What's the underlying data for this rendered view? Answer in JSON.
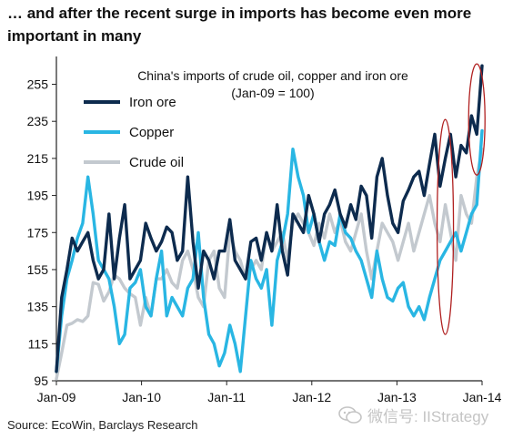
{
  "headline": "… and after the recent surge in imports has become even more important in many",
  "source": "Source: EcoWin, Barclays Research",
  "watermark": "微信号: IIStrategy",
  "chart_data": {
    "type": "line",
    "title": "China's imports of crude oil, copper and iron ore",
    "subtitle": "(Jan-09 = 100)",
    "x_ticks": [
      "Jan-09",
      "Jan-10",
      "Jan-11",
      "Jan-12",
      "Jan-13",
      "Jan-14"
    ],
    "x_start": "2009-01",
    "x_end": "2014-01",
    "y_ticks": [
      95,
      115,
      135,
      155,
      175,
      195,
      215,
      235,
      255
    ],
    "ylim": [
      95,
      270
    ],
    "legend_position": "top-left",
    "grid": false,
    "highlight_color": "#b02020",
    "series": [
      {
        "name": "Iron ore",
        "color": "#0d2b4e",
        "values": [
          100,
          140,
          155,
          172,
          165,
          170,
          175,
          160,
          150,
          155,
          185,
          150,
          172,
          190,
          150,
          155,
          160,
          180,
          172,
          165,
          170,
          178,
          175,
          160,
          165,
          205,
          170,
          145,
          165,
          160,
          150,
          165,
          165,
          182,
          160,
          155,
          150,
          170,
          172,
          160,
          175,
          165,
          190,
          165,
          152,
          185,
          180,
          175,
          195,
          185,
          170,
          185,
          190,
          198,
          185,
          178,
          190,
          182,
          200,
          195,
          172,
          205,
          215,
          195,
          180,
          175,
          192,
          198,
          205,
          208,
          195,
          212,
          228,
          200,
          215,
          228,
          205,
          222,
          218,
          238,
          228,
          265
        ]
      },
      {
        "name": "Copper",
        "color": "#29b6e3",
        "values": [
          100,
          130,
          150,
          160,
          172,
          180,
          205,
          185,
          160,
          155,
          150,
          135,
          115,
          120,
          145,
          148,
          155,
          135,
          130,
          150,
          165,
          130,
          140,
          135,
          130,
          145,
          150,
          175,
          140,
          120,
          115,
          103,
          110,
          125,
          115,
          100,
          130,
          160,
          150,
          145,
          155,
          125,
          160,
          170,
          185,
          220,
          205,
          195,
          175,
          185,
          170,
          160,
          170,
          168,
          185,
          175,
          172,
          165,
          160,
          150,
          140,
          165,
          150,
          140,
          138,
          145,
          148,
          135,
          130,
          135,
          128,
          140,
          150,
          160,
          165,
          170,
          175,
          165,
          175,
          185,
          190,
          230
        ]
      },
      {
        "name": "Crude oil",
        "color": "#c3c9cf",
        "values": [
          96,
          110,
          125,
          126,
          128,
          127,
          130,
          148,
          147,
          138,
          143,
          152,
          150,
          145,
          142,
          140,
          125,
          140,
          130,
          150,
          150,
          155,
          148,
          145,
          160,
          165,
          155,
          140,
          135,
          160,
          165,
          145,
          140,
          175,
          165,
          160,
          150,
          155,
          160,
          155,
          175,
          165,
          170,
          175,
          160,
          180,
          185,
          180,
          175,
          168,
          180,
          172,
          185,
          175,
          182,
          170,
          165,
          175,
          185,
          165,
          150,
          165,
          180,
          175,
          170,
          160,
          170,
          180,
          165,
          175,
          185,
          195,
          180,
          170,
          190,
          175,
          160,
          195,
          185,
          180,
          205,
          220
        ]
      }
    ],
    "highlights": [
      {
        "label": "Jan-13 spike",
        "x_index": 74,
        "y_center": 178,
        "ry_units": 58
      },
      {
        "label": "Jan-14 spike",
        "x_index": 80,
        "y_center": 236,
        "ry_units": 30
      }
    ]
  }
}
